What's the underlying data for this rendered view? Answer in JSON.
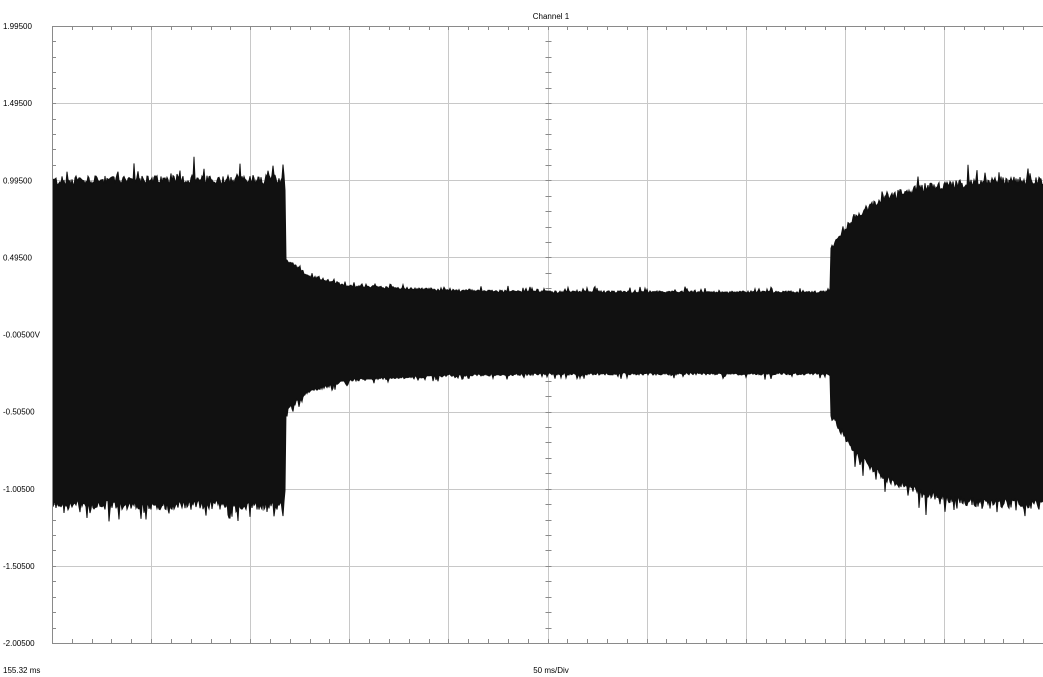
{
  "window": {
    "title": "Channel 1"
  },
  "colors": {
    "background": "#ffffff",
    "grid": "#c8c8c8",
    "axis": "#8a8a8a",
    "trace": "#111111"
  },
  "readouts": {
    "start_time": "155.32 ms",
    "time_per_div": "50 ms/Div"
  },
  "chart_data": {
    "type": "line",
    "title": "Channel 1",
    "xlabel": "50 ms/Div",
    "ylabel": "",
    "grid": true,
    "x_start_label": "155.32 ms",
    "x_divisions": 10,
    "y_ticks": [
      "1.99500",
      "1.49500",
      "0.99500",
      "0.49500",
      "-0.00500V",
      "-0.50500",
      "-1.00500",
      "-1.50500",
      "-2.00500"
    ],
    "ylim": [
      -2.005,
      1.995
    ],
    "series": [
      {
        "envelope": [
          {
            "x_div": 0.0,
            "upper": 0.99,
            "lower": -1.11
          },
          {
            "x_div": 2.35,
            "upper": 1.0,
            "lower": -1.11
          },
          {
            "x_div": 2.36,
            "upper": 0.48,
            "lower": -0.49
          },
          {
            "x_div": 2.6,
            "upper": 0.37,
            "lower": -0.37
          },
          {
            "x_div": 3.0,
            "upper": 0.31,
            "lower": -0.3
          },
          {
            "x_div": 4.0,
            "upper": 0.28,
            "lower": -0.27
          },
          {
            "x_div": 5.0,
            "upper": 0.27,
            "lower": -0.26
          },
          {
            "x_div": 6.0,
            "upper": 0.27,
            "lower": -0.26
          },
          {
            "x_div": 7.0,
            "upper": 0.27,
            "lower": -0.26
          },
          {
            "x_div": 7.85,
            "upper": 0.27,
            "lower": -0.26
          },
          {
            "x_div": 7.86,
            "upper": 0.55,
            "lower": -0.52
          },
          {
            "x_div": 8.1,
            "upper": 0.76,
            "lower": -0.78
          },
          {
            "x_div": 8.4,
            "upper": 0.88,
            "lower": -0.93
          },
          {
            "x_div": 8.8,
            "upper": 0.95,
            "lower": -1.04
          },
          {
            "x_div": 9.3,
            "upper": 0.98,
            "lower": -1.09
          },
          {
            "x_div": 10.0,
            "upper": 0.99,
            "lower": -1.11
          }
        ]
      }
    ]
  }
}
